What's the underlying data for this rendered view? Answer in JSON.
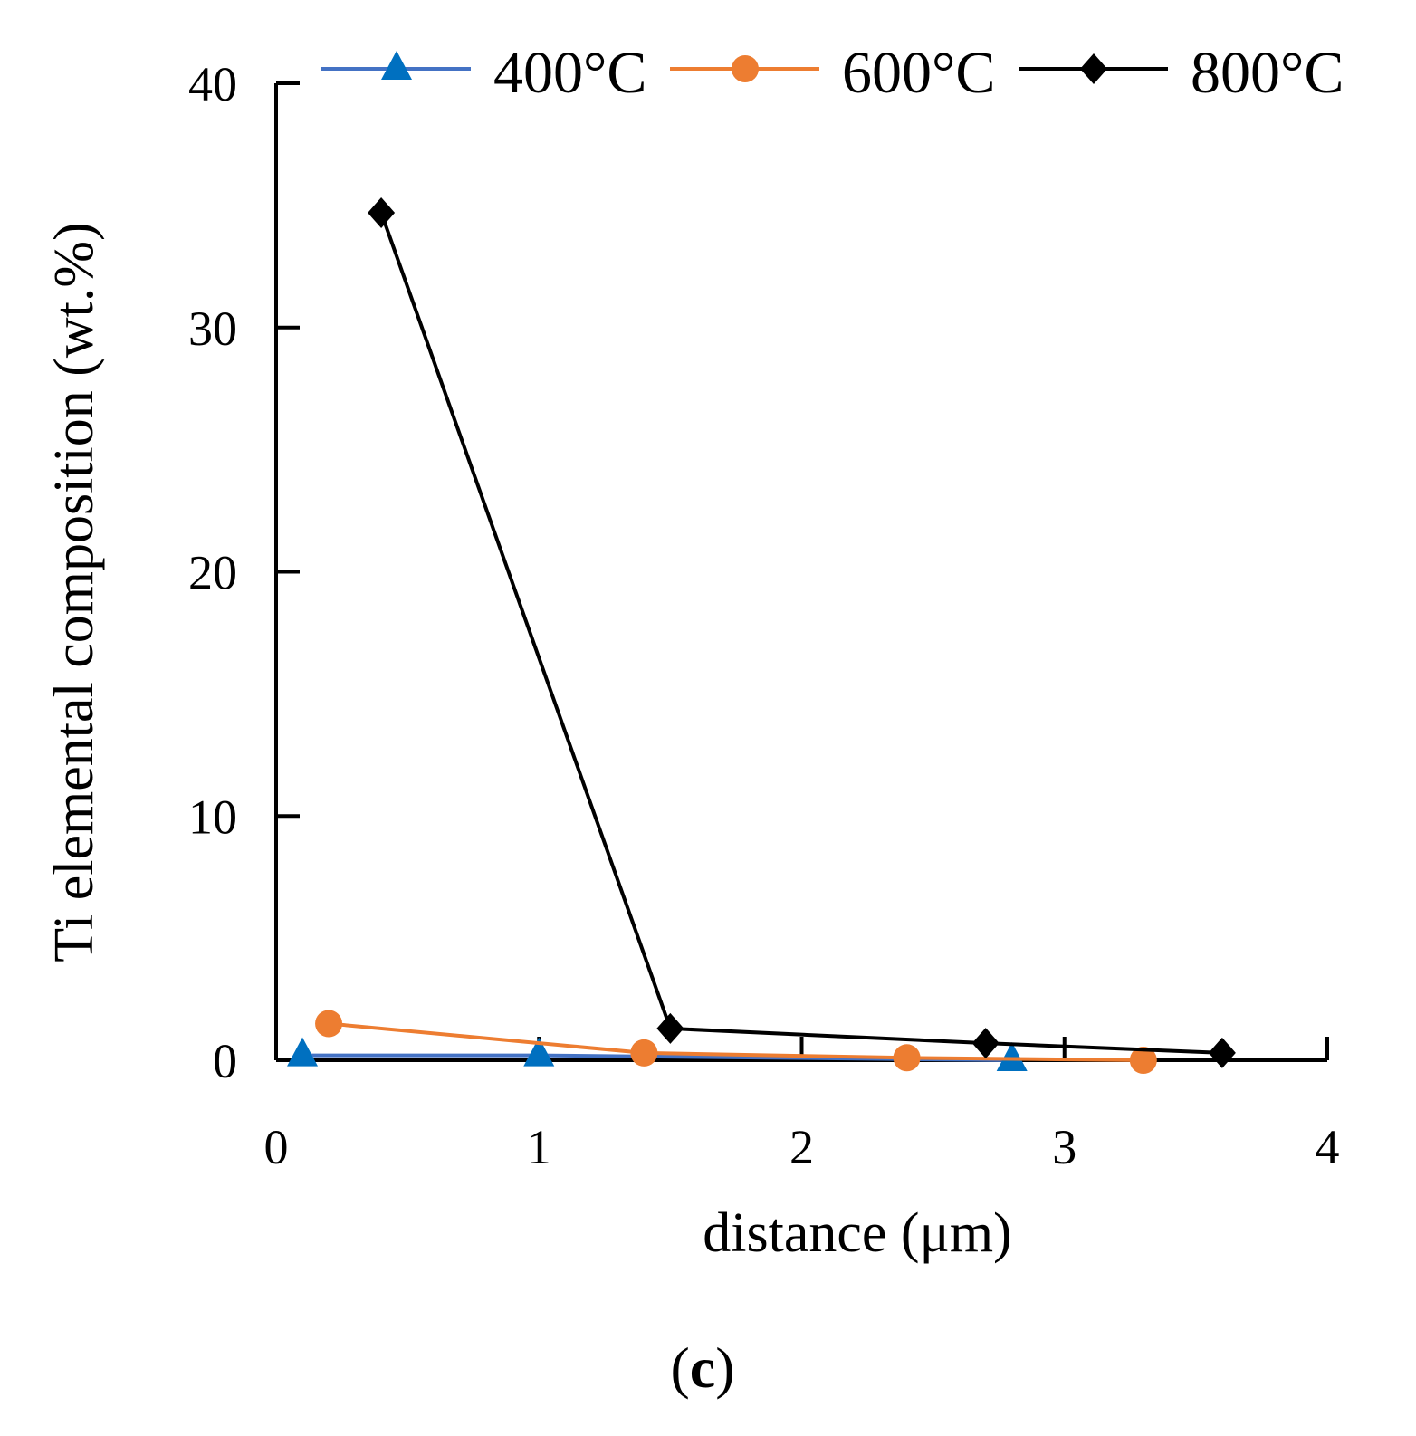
{
  "chart_data": {
    "type": "line",
    "title": "",
    "xlabel": "distance (μm)",
    "ylabel": "Ti elemental composition (wt.%)",
    "xlim": [
      0,
      4
    ],
    "ylim": [
      0,
      40
    ],
    "xticks": [
      0,
      1,
      2,
      3,
      4
    ],
    "yticks": [
      0,
      10,
      20,
      30,
      40
    ],
    "xtick_labels": [
      "0",
      "1",
      "2",
      "3",
      "4"
    ],
    "ytick_labels": [
      "0",
      "10",
      "20",
      "30",
      "40"
    ],
    "grid": false,
    "legend_position": "top",
    "series": [
      {
        "name": "400°C",
        "label": "400°C",
        "color": "#4472C4",
        "marker_color": "#0070C0",
        "marker": "triangle",
        "x": [
          0.1,
          1.0,
          2.8
        ],
        "y": [
          0.2,
          0.2,
          0.0
        ]
      },
      {
        "name": "600°C",
        "label": "600°C",
        "color": "#ED7D31",
        "marker_color": "#ED7D31",
        "marker": "circle",
        "x": [
          0.2,
          1.4,
          2.4,
          3.3
        ],
        "y": [
          1.5,
          0.3,
          0.1,
          0.0
        ]
      },
      {
        "name": "800°C",
        "label": "800°C",
        "color": "#000000",
        "marker_color": "#000000",
        "marker": "diamond",
        "x": [
          0.4,
          1.5,
          2.7,
          3.6
        ],
        "y": [
          34.7,
          1.3,
          0.7,
          0.3
        ]
      }
    ],
    "panel_label": {
      "open": "(",
      "letter": "c",
      "close": ")"
    }
  }
}
